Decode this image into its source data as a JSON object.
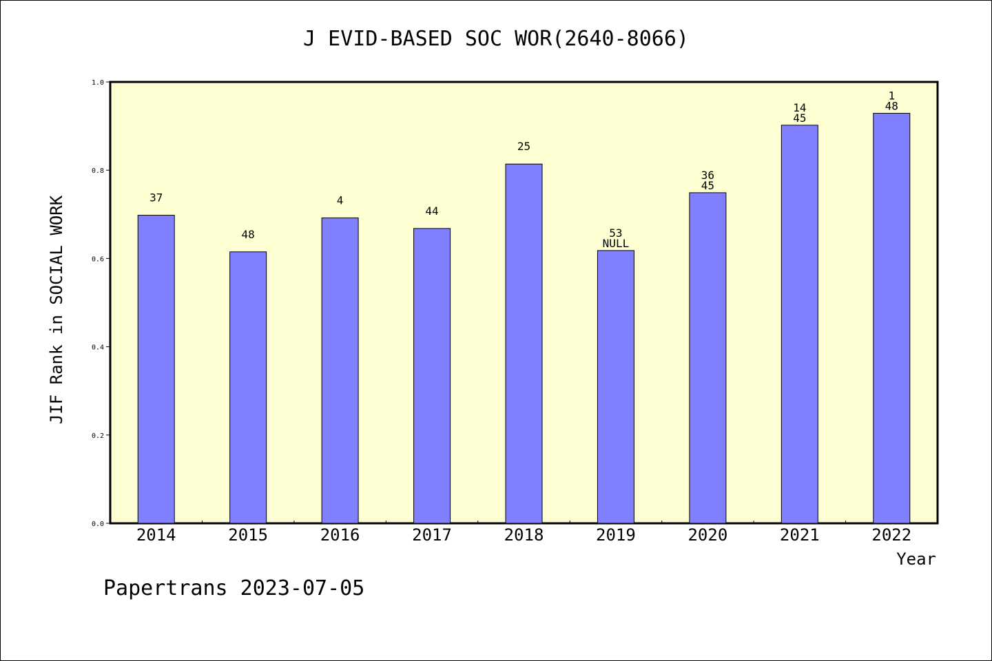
{
  "chart_data": {
    "type": "bar",
    "title": "J EVID-BASED SOC WOR(2640-8066)",
    "xlabel": "Year",
    "ylabel": "JIF Rank in SOCIAL WORK",
    "ylim": [
      0,
      1
    ],
    "yticks": [
      "0.0",
      "0.2",
      "0.4",
      "0.6",
      "0.8",
      "1.0"
    ],
    "categories": [
      "2014",
      "2015",
      "2016",
      "2017",
      "2018",
      "2019",
      "2020",
      "2021",
      "2022"
    ],
    "values": [
      0.698,
      0.615,
      0.692,
      0.668,
      0.814,
      0.618,
      0.749,
      0.902,
      0.929
    ],
    "labels": [
      [
        "37"
      ],
      [
        "48"
      ],
      [
        "4"
      ],
      [
        "44"
      ],
      [
        "25"
      ],
      [
        "53",
        "NULL"
      ],
      [
        "36",
        "45"
      ],
      [
        "14",
        "45"
      ],
      [
        "1",
        "48"
      ]
    ],
    "colors": {
      "plot_background": "#ffffd4",
      "bar": "#8080ff"
    },
    "grid": false
  },
  "footer": {
    "credit": "Papertrans 2023-07-05"
  }
}
